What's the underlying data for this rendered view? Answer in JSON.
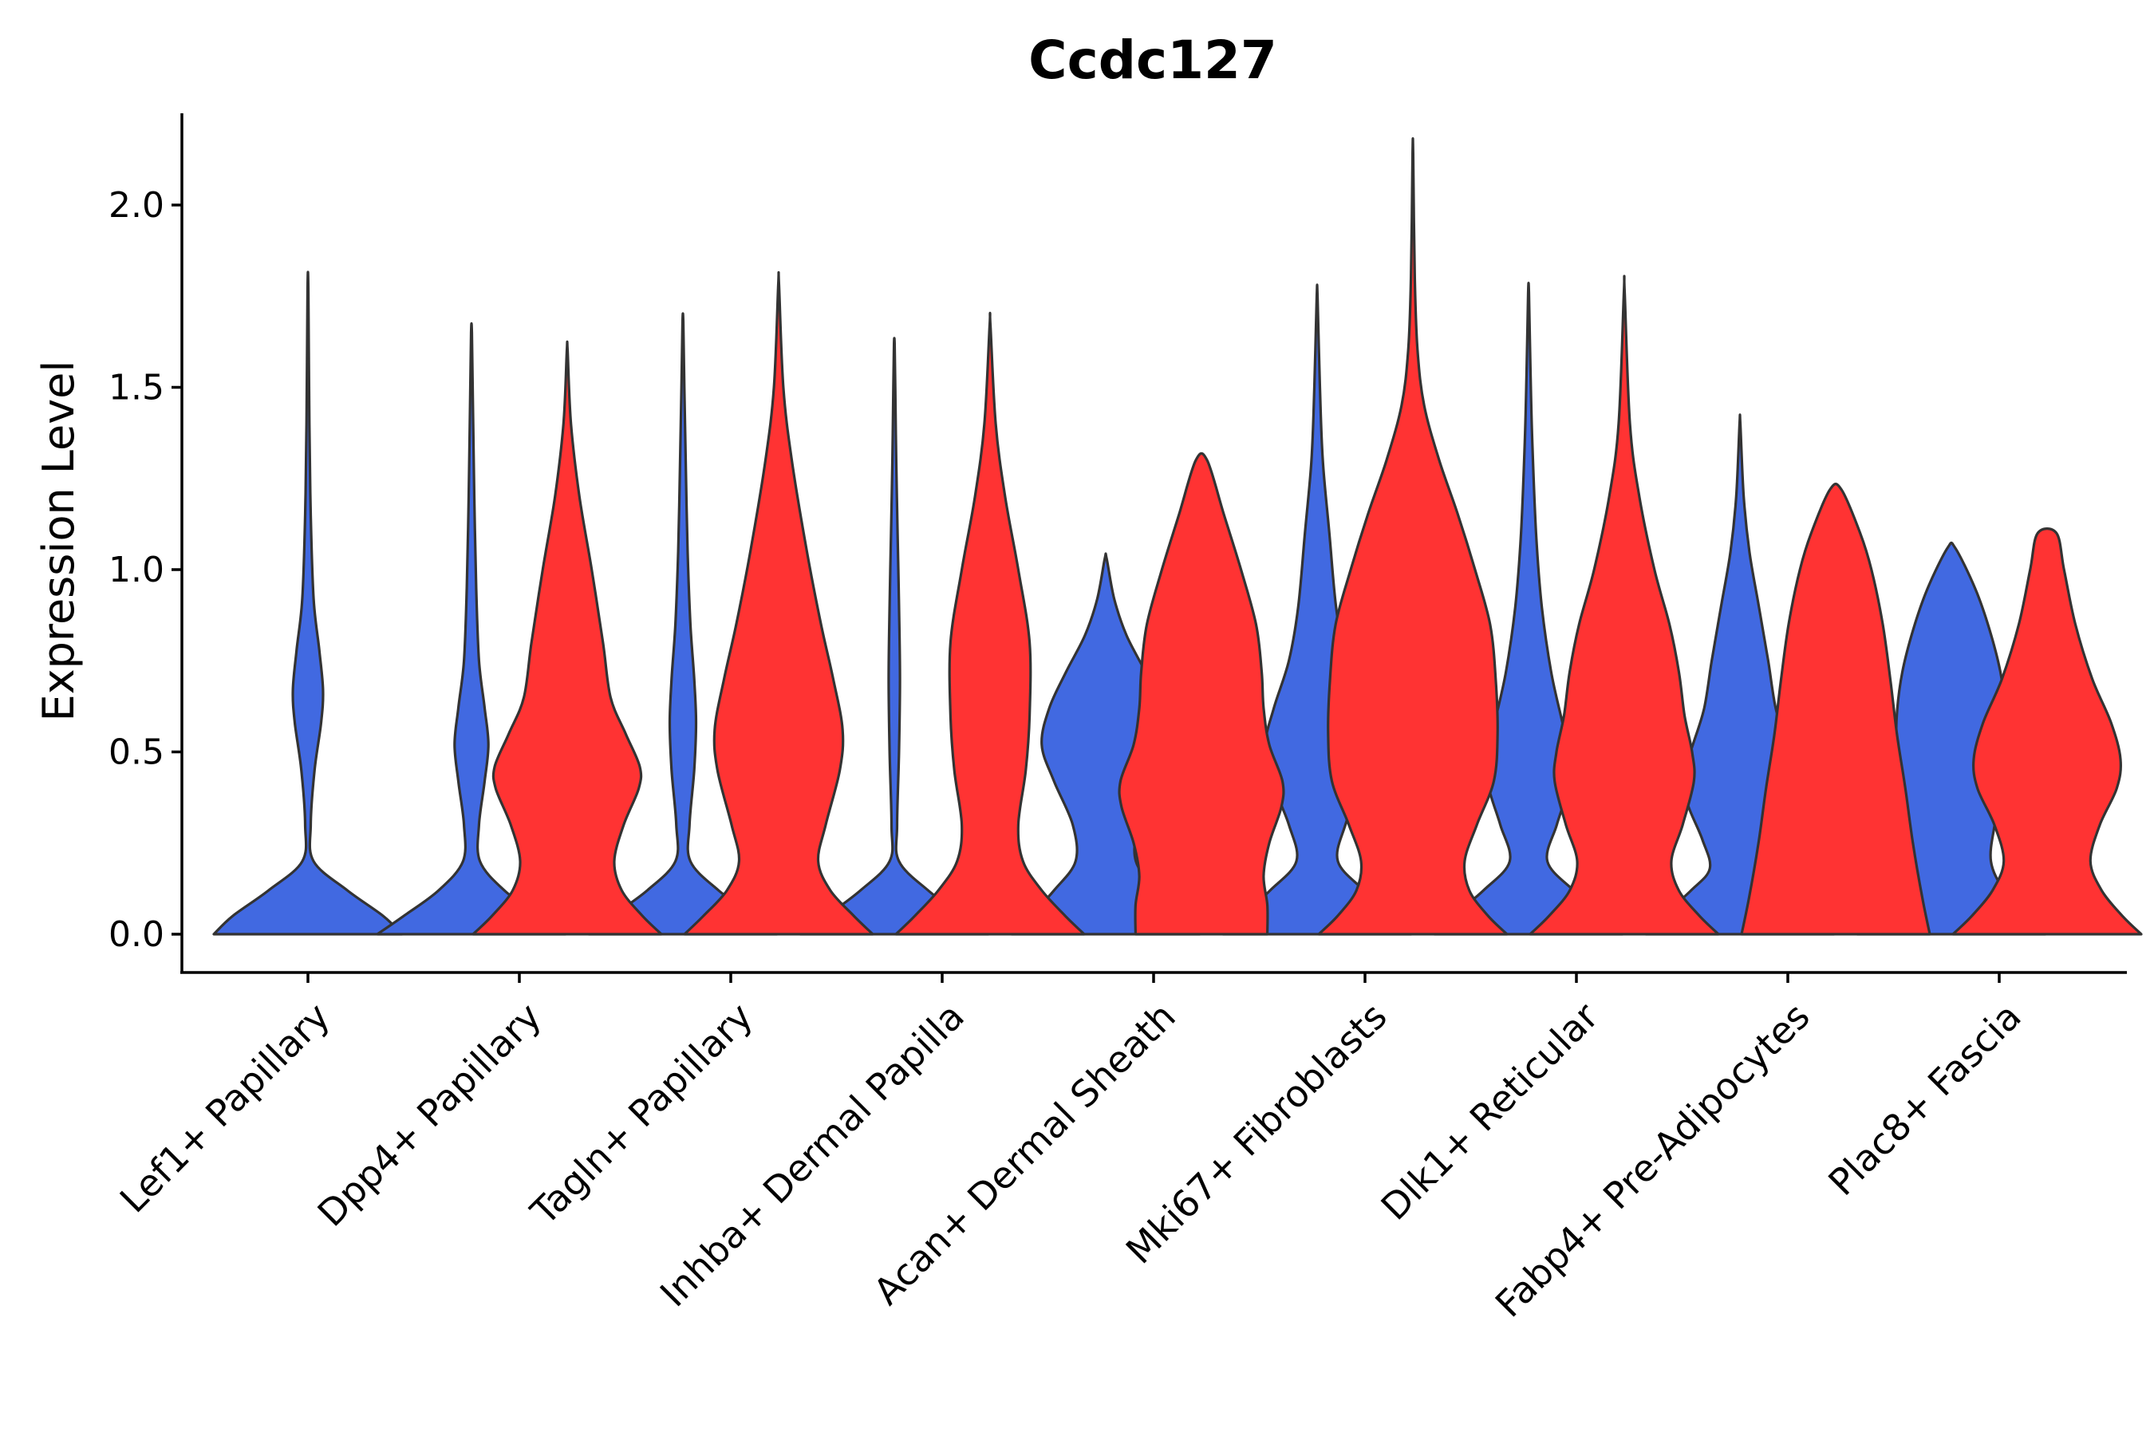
{
  "chart_data": {
    "type": "violin",
    "title": "Ccdc127",
    "xlabel": "",
    "ylabel": "Expression Level",
    "ylim": [
      -0.11,
      2.25
    ],
    "yticks": [
      0.0,
      0.5,
      1.0,
      1.5,
      2.0
    ],
    "ytick_labels": [
      "0.0",
      "0.5",
      "1.0",
      "1.5",
      "2.0"
    ],
    "grid": false,
    "categories": [
      "Lef1+ Papillary",
      "Dpp4+ Papillary",
      "Tagln+ Papillary",
      "Inhba+ Dermal Papilla",
      "Acan+ Dermal Sheath",
      "Mki67+ Fibroblasts",
      "Dlk1+ Reticular",
      "Fabp4+ Pre-Adipocytes",
      "Plac8+ Fascia"
    ],
    "colors": {
      "blue": "#4169E1",
      "red": "#FF3333"
    },
    "series": [
      {
        "name": "blue",
        "color": "#4169E1",
        "violins": [
          {
            "category": "Lef1+ Papillary",
            "max": 1.77,
            "profile": [
              [
                0,
                1.0
              ],
              [
                0.05,
                0.8
              ],
              [
                0.12,
                0.42
              ],
              [
                0.2,
                0.06
              ],
              [
                0.3,
                0.03
              ],
              [
                0.45,
                0.07
              ],
              [
                0.58,
                0.14
              ],
              [
                0.67,
                0.16
              ],
              [
                0.78,
                0.12
              ],
              [
                0.92,
                0.06
              ],
              [
                1.15,
                0.03
              ],
              [
                1.4,
                0.015
              ],
              [
                1.77,
                0.004
              ]
            ]
          },
          {
            "category": "Dpp4+ Papillary",
            "max": 1.65,
            "profile": [
              [
                0,
                1.0
              ],
              [
                0.05,
                0.72
              ],
              [
                0.12,
                0.35
              ],
              [
                0.2,
                0.09
              ],
              [
                0.3,
                0.08
              ],
              [
                0.42,
                0.14
              ],
              [
                0.52,
                0.18
              ],
              [
                0.62,
                0.14
              ],
              [
                0.75,
                0.08
              ],
              [
                0.95,
                0.05
              ],
              [
                1.2,
                0.03
              ],
              [
                1.45,
                0.015
              ],
              [
                1.65,
                0.004
              ]
            ]
          },
          {
            "category": "Tagln+ Papillary",
            "max": 1.68,
            "profile": [
              [
                0,
                1.0
              ],
              [
                0.05,
                0.75
              ],
              [
                0.12,
                0.38
              ],
              [
                0.2,
                0.08
              ],
              [
                0.3,
                0.07
              ],
              [
                0.45,
                0.12
              ],
              [
                0.58,
                0.14
              ],
              [
                0.7,
                0.12
              ],
              [
                0.85,
                0.08
              ],
              [
                1.05,
                0.05
              ],
              [
                1.3,
                0.03
              ],
              [
                1.5,
                0.015
              ],
              [
                1.68,
                0.004
              ]
            ]
          },
          {
            "category": "Inhba+ Dermal Papilla",
            "max": 1.62,
            "profile": [
              [
                0,
                1.0
              ],
              [
                0.05,
                0.72
              ],
              [
                0.12,
                0.36
              ],
              [
                0.2,
                0.05
              ],
              [
                0.3,
                0.03
              ],
              [
                0.5,
                0.05
              ],
              [
                0.7,
                0.06
              ],
              [
                0.9,
                0.05
              ],
              [
                1.1,
                0.035
              ],
              [
                1.3,
                0.02
              ],
              [
                1.5,
                0.01
              ],
              [
                1.62,
                0.003
              ]
            ]
          },
          {
            "category": "Acan+ Dermal Sheath",
            "max": 1.03,
            "profile": [
              [
                0,
                1.0
              ],
              [
                0.05,
                0.8
              ],
              [
                0.12,
                0.55
              ],
              [
                0.2,
                0.32
              ],
              [
                0.3,
                0.35
              ],
              [
                0.42,
                0.55
              ],
              [
                0.52,
                0.68
              ],
              [
                0.62,
                0.6
              ],
              [
                0.72,
                0.42
              ],
              [
                0.82,
                0.22
              ],
              [
                0.92,
                0.09
              ],
              [
                1.03,
                0.01
              ]
            ]
          },
          {
            "category": "Mki67+ Fibroblasts",
            "max": 1.75,
            "profile": [
              [
                0,
                1.0
              ],
              [
                0.05,
                0.8
              ],
              [
                0.12,
                0.5
              ],
              [
                0.2,
                0.22
              ],
              [
                0.3,
                0.3
              ],
              [
                0.42,
                0.48
              ],
              [
                0.52,
                0.55
              ],
              [
                0.62,
                0.46
              ],
              [
                0.75,
                0.3
              ],
              [
                0.9,
                0.2
              ],
              [
                1.1,
                0.13
              ],
              [
                1.3,
                0.06
              ],
              [
                1.5,
                0.03
              ],
              [
                1.75,
                0.004
              ]
            ]
          },
          {
            "category": "Dlk1+ Reticular",
            "max": 1.76,
            "profile": [
              [
                0,
                1.0
              ],
              [
                0.05,
                0.8
              ],
              [
                0.12,
                0.48
              ],
              [
                0.2,
                0.2
              ],
              [
                0.3,
                0.3
              ],
              [
                0.4,
                0.42
              ],
              [
                0.48,
                0.44
              ],
              [
                0.58,
                0.36
              ],
              [
                0.72,
                0.24
              ],
              [
                0.9,
                0.14
              ],
              [
                1.1,
                0.08
              ],
              [
                1.35,
                0.04
              ],
              [
                1.55,
                0.02
              ],
              [
                1.76,
                0.004
              ]
            ]
          },
          {
            "category": "Fabp4+ Pre-Adipocytes",
            "max": 1.4,
            "profile": [
              [
                0,
                1.0
              ],
              [
                0.05,
                0.82
              ],
              [
                0.12,
                0.52
              ],
              [
                0.18,
                0.32
              ],
              [
                0.26,
                0.4
              ],
              [
                0.36,
                0.56
              ],
              [
                0.44,
                0.6
              ],
              [
                0.52,
                0.5
              ],
              [
                0.62,
                0.38
              ],
              [
                0.75,
                0.3
              ],
              [
                0.9,
                0.2
              ],
              [
                1.05,
                0.1
              ],
              [
                1.2,
                0.04
              ],
              [
                1.4,
                0.004
              ]
            ]
          },
          {
            "category": "Plac8+ Fascia",
            "max": 1.06,
            "profile": [
              [
                0,
                1.0
              ],
              [
                0.05,
                0.8
              ],
              [
                0.12,
                0.56
              ],
              [
                0.2,
                0.42
              ],
              [
                0.3,
                0.46
              ],
              [
                0.4,
                0.54
              ],
              [
                0.5,
                0.58
              ],
              [
                0.6,
                0.58
              ],
              [
                0.72,
                0.52
              ],
              [
                0.84,
                0.4
              ],
              [
                0.95,
                0.25
              ],
              [
                1.06,
                0.04
              ]
            ]
          }
        ]
      },
      {
        "name": "red",
        "color": "#FF3333",
        "violins": [
          {
            "category": "Dpp4+ Papillary",
            "max": 1.6,
            "profile": [
              [
                0,
                1.0
              ],
              [
                0.05,
                0.8
              ],
              [
                0.12,
                0.58
              ],
              [
                0.2,
                0.5
              ],
              [
                0.3,
                0.6
              ],
              [
                0.4,
                0.76
              ],
              [
                0.46,
                0.77
              ],
              [
                0.55,
                0.62
              ],
              [
                0.65,
                0.46
              ],
              [
                0.8,
                0.38
              ],
              [
                1.0,
                0.26
              ],
              [
                1.2,
                0.13
              ],
              [
                1.4,
                0.04
              ],
              [
                1.6,
                0.004
              ]
            ]
          },
          {
            "category": "Tagln+ Papillary",
            "max": 1.78,
            "profile": [
              [
                0,
                1.0
              ],
              [
                0.05,
                0.8
              ],
              [
                0.12,
                0.55
              ],
              [
                0.2,
                0.42
              ],
              [
                0.3,
                0.5
              ],
              [
                0.45,
                0.65
              ],
              [
                0.56,
                0.68
              ],
              [
                0.7,
                0.58
              ],
              [
                0.85,
                0.45
              ],
              [
                1.05,
                0.3
              ],
              [
                1.3,
                0.14
              ],
              [
                1.5,
                0.05
              ],
              [
                1.78,
                0.004
              ]
            ]
          },
          {
            "category": "Inhba+ Dermal Papilla",
            "max": 1.67,
            "profile": [
              [
                0,
                1.0
              ],
              [
                0.05,
                0.8
              ],
              [
                0.12,
                0.55
              ],
              [
                0.2,
                0.35
              ],
              [
                0.3,
                0.3
              ],
              [
                0.45,
                0.38
              ],
              [
                0.6,
                0.42
              ],
              [
                0.8,
                0.42
              ],
              [
                1.0,
                0.3
              ],
              [
                1.2,
                0.16
              ],
              [
                1.4,
                0.06
              ],
              [
                1.67,
                0.004
              ]
            ]
          },
          {
            "category": "Acan+ Dermal Sheath",
            "max": 1.3,
            "profile": [
              [
                0,
                0.7
              ],
              [
                0.08,
                0.7
              ],
              [
                0.16,
                0.66
              ],
              [
                0.25,
                0.72
              ],
              [
                0.35,
                0.85
              ],
              [
                0.42,
                0.86
              ],
              [
                0.52,
                0.72
              ],
              [
                0.62,
                0.66
              ],
              [
                0.72,
                0.64
              ],
              [
                0.85,
                0.58
              ],
              [
                1.0,
                0.42
              ],
              [
                1.15,
                0.24
              ],
              [
                1.3,
                0.06
              ]
            ]
          },
          {
            "category": "Mki67+ Fibroblasts",
            "max": 2.14,
            "profile": [
              [
                0,
                1.0
              ],
              [
                0.05,
                0.8
              ],
              [
                0.12,
                0.6
              ],
              [
                0.2,
                0.55
              ],
              [
                0.3,
                0.68
              ],
              [
                0.42,
                0.86
              ],
              [
                0.55,
                0.9
              ],
              [
                0.7,
                0.88
              ],
              [
                0.85,
                0.82
              ],
              [
                1.0,
                0.66
              ],
              [
                1.15,
                0.48
              ],
              [
                1.3,
                0.28
              ],
              [
                1.45,
                0.12
              ],
              [
                1.6,
                0.05
              ],
              [
                1.8,
                0.02
              ],
              [
                2.14,
                0.003
              ]
            ]
          },
          {
            "category": "Dlk1+ Reticular",
            "max": 1.76,
            "profile": [
              [
                0,
                1.0
              ],
              [
                0.05,
                0.8
              ],
              [
                0.12,
                0.58
              ],
              [
                0.2,
                0.5
              ],
              [
                0.3,
                0.62
              ],
              [
                0.42,
                0.74
              ],
              [
                0.5,
                0.72
              ],
              [
                0.6,
                0.64
              ],
              [
                0.72,
                0.58
              ],
              [
                0.85,
                0.48
              ],
              [
                1.0,
                0.32
              ],
              [
                1.2,
                0.16
              ],
              [
                1.4,
                0.06
              ],
              [
                1.76,
                0.004
              ]
            ]
          },
          {
            "category": "Fabp4+ Pre-Adipocytes",
            "max": 1.22,
            "profile": [
              [
                0,
                1.0
              ],
              [
                0.1,
                0.92
              ],
              [
                0.25,
                0.82
              ],
              [
                0.4,
                0.74
              ],
              [
                0.55,
                0.65
              ],
              [
                0.7,
                0.58
              ],
              [
                0.85,
                0.5
              ],
              [
                1.0,
                0.38
              ],
              [
                1.1,
                0.26
              ],
              [
                1.22,
                0.06
              ]
            ]
          },
          {
            "category": "Plac8+ Fascia",
            "max": 1.1,
            "profile": [
              [
                0,
                1.0
              ],
              [
                0.05,
                0.8
              ],
              [
                0.12,
                0.58
              ],
              [
                0.2,
                0.46
              ],
              [
                0.3,
                0.56
              ],
              [
                0.4,
                0.74
              ],
              [
                0.48,
                0.78
              ],
              [
                0.58,
                0.68
              ],
              [
                0.7,
                0.48
              ],
              [
                0.85,
                0.3
              ],
              [
                1.0,
                0.18
              ],
              [
                1.1,
                0.1
              ]
            ]
          }
        ]
      }
    ]
  }
}
